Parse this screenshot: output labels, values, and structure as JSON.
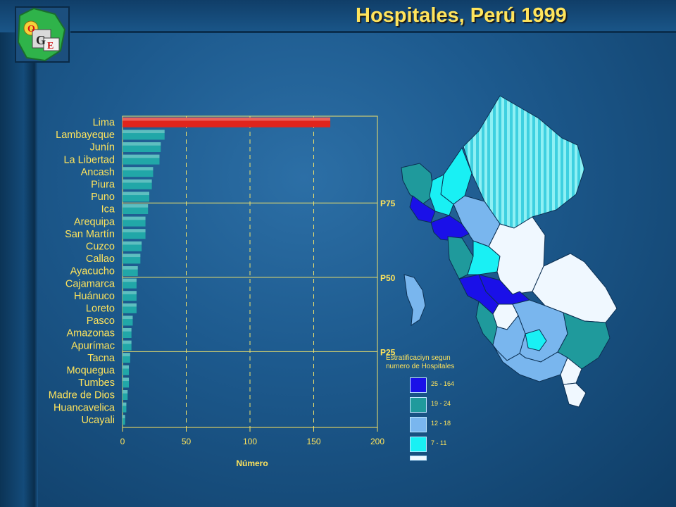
{
  "title": "Hospitales, Perú 1999",
  "logo": {
    "letters": [
      "O",
      "G",
      "E"
    ]
  },
  "colors": {
    "accent_text": "#ffe45c",
    "bar_teal": "#21a7a8",
    "bar_red": "#e0241c",
    "grid": "#f2e36a"
  },
  "chart_data": {
    "type": "bar",
    "orientation": "horizontal",
    "categories": [
      "Lima",
      "Lambayeque",
      "Junín",
      "La Libertad",
      "Ancash",
      "Piura",
      "Puno",
      "Ica",
      "Arequipa",
      "San Martín",
      "Cuzco",
      "Callao",
      "Ayacucho",
      "Cajamarca",
      "Huánuco",
      "Loreto",
      "Pasco",
      "Amazonas",
      "Apurímac",
      "Tacna",
      "Moquegua",
      "Tumbes",
      "Madre de Dios",
      "Huancavelica",
      "Ucayali"
    ],
    "values": [
      163,
      33,
      30,
      29,
      24,
      23,
      21,
      20,
      18,
      18,
      15,
      14,
      12,
      11,
      11,
      11,
      8,
      7,
      7,
      6,
      5,
      5,
      4,
      3,
      2
    ],
    "highlight_index": 0,
    "xlim": [
      0,
      200
    ],
    "xticks": [
      "0",
      "50",
      "100",
      "150",
      "200"
    ],
    "xlabel": "Número",
    "ylabel": "",
    "grid": "vertical dashed",
    "percentile_lines": [
      {
        "label": "P75",
        "after_category": "Puno"
      },
      {
        "label": "P50",
        "after_category": "Ayacucho"
      },
      {
        "label": "P25",
        "after_category": "Apurímac"
      }
    ]
  },
  "map": {
    "legend_title": "Estratificaciyn segun numero de Hospitales",
    "legend": [
      {
        "label": "25 - 164",
        "color": "#1a10e8"
      },
      {
        "label": "19 - 24",
        "color": "#1f9a9c"
      },
      {
        "label": "12 - 18",
        "color": "#79b6ee"
      },
      {
        "label": "7 - 11",
        "color": "#19f0f4"
      },
      {
        "label": "",
        "color": "#f0f8ff"
      }
    ]
  }
}
